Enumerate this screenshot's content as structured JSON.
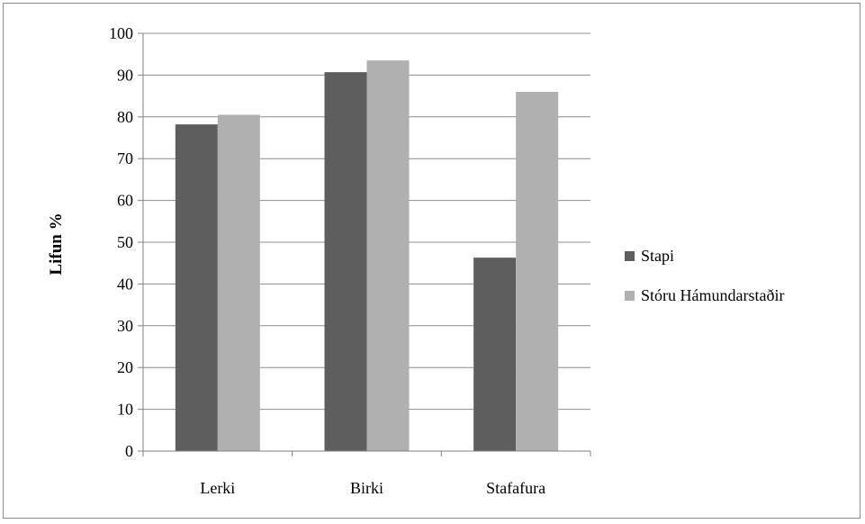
{
  "chart_data": {
    "type": "bar",
    "title": "",
    "xlabel": "",
    "ylabel": "Lifun %",
    "categories": [
      "Lerki",
      "Birki",
      "Stafafura"
    ],
    "series": [
      {
        "name": "Stapi",
        "values": [
          78.2,
          90.7,
          46.3
        ]
      },
      {
        "name": "Stóru Hámundarstaðir",
        "values": [
          80.5,
          93.5,
          86.0
        ]
      }
    ],
    "ylim": [
      0,
      100
    ],
    "yticks": [
      0,
      10,
      20,
      30,
      40,
      50,
      60,
      70,
      80,
      90,
      100
    ],
    "grid": true,
    "legend_position": "right"
  },
  "colors": {
    "series": [
      "#5e5e5e",
      "#b0b0b0"
    ],
    "grid": "#8c8c8c",
    "axis": "#808080"
  }
}
